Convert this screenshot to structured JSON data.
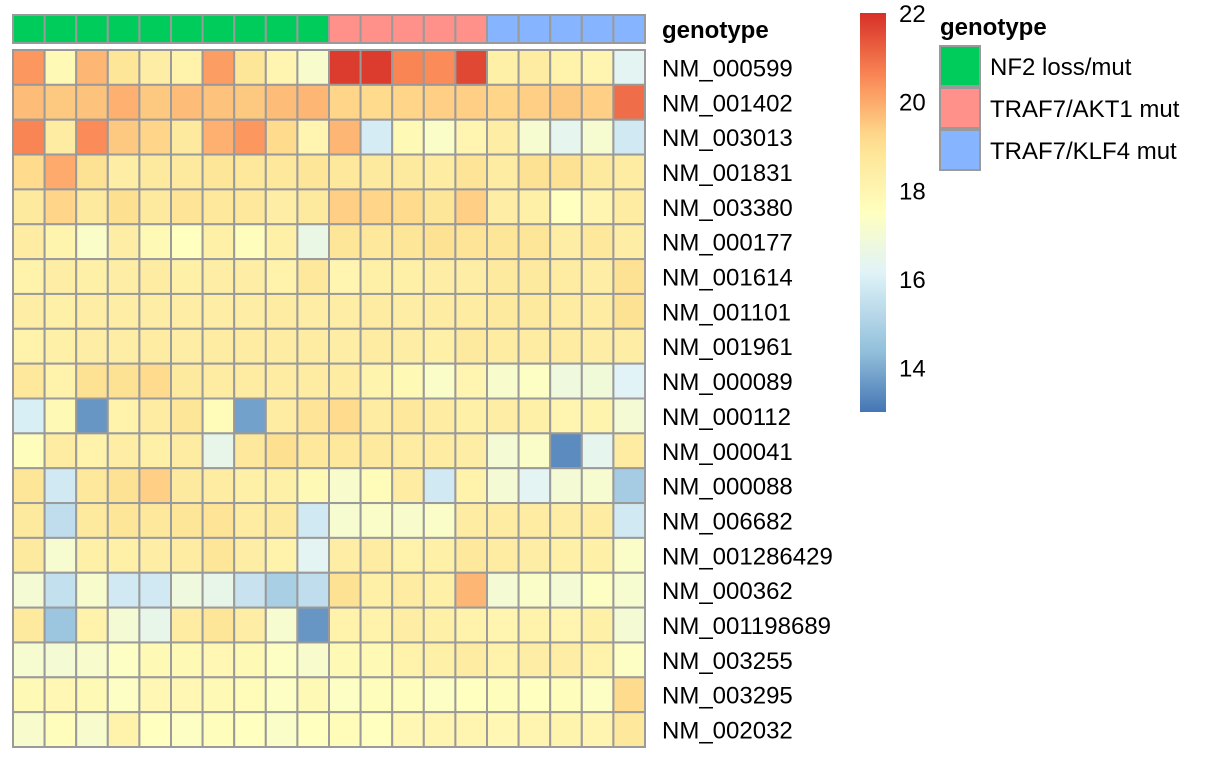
{
  "chart_data": {
    "type": "heatmap",
    "annotation_title": "genotype",
    "legend_title": "genotype",
    "colorbar_ticks": [
      14,
      16,
      18,
      20,
      22
    ],
    "color_range": [
      13,
      22
    ],
    "genotype_groups": [
      {
        "name": "NF2 loss/mut",
        "color": "#00CC5C"
      },
      {
        "name": "TRAF7/AKT1 mut",
        "color": "#FF918A"
      },
      {
        "name": "TRAF7/KLF4 mut",
        "color": "#86B4FF"
      }
    ],
    "column_groups": [
      0,
      0,
      0,
      0,
      0,
      0,
      0,
      0,
      0,
      0,
      1,
      1,
      1,
      1,
      1,
      2,
      2,
      2,
      2,
      2
    ],
    "rows": [
      "NM_000599",
      "NM_001402",
      "NM_003013",
      "NM_001831",
      "NM_003380",
      "NM_000177",
      "NM_001614",
      "NM_001101",
      "NM_001961",
      "NM_000089",
      "NM_000112",
      "NM_000041",
      "NM_000088",
      "NM_006682",
      "NM_001286429",
      "NM_000362",
      "NM_001198689",
      "NM_003255",
      "NM_003295",
      "NM_002032"
    ],
    "values": [
      [
        20.3,
        17.8,
        19.8,
        18.8,
        18.4,
        18.2,
        20.2,
        18.8,
        18.0,
        17.2,
        21.8,
        21.8,
        20.6,
        20.5,
        21.6,
        18.3,
        18.5,
        18.2,
        18.0,
        16.3
      ],
      [
        19.7,
        19.5,
        19.6,
        19.9,
        19.5,
        19.7,
        19.6,
        19.5,
        19.7,
        19.8,
        19.3,
        19.2,
        19.3,
        19.4,
        19.4,
        19.3,
        19.4,
        19.5,
        19.4,
        21.0
      ],
      [
        20.6,
        18.5,
        20.5,
        19.5,
        19.3,
        18.6,
        19.9,
        20.3,
        19.2,
        18.0,
        19.8,
        15.9,
        17.8,
        17.3,
        18.0,
        18.4,
        17.1,
        16.4,
        17.1,
        15.8
      ],
      [
        19.2,
        20.0,
        19.0,
        18.4,
        18.6,
        18.6,
        18.8,
        18.7,
        18.7,
        18.8,
        18.7,
        18.6,
        18.6,
        18.5,
        18.9,
        18.5,
        19.0,
        19.0,
        18.6,
        18.5
      ],
      [
        18.6,
        19.3,
        18.6,
        19.1,
        18.6,
        18.9,
        18.7,
        18.7,
        18.4,
        18.6,
        19.4,
        19.3,
        19.2,
        18.8,
        19.4,
        18.4,
        18.3,
        17.5,
        18.0,
        18.5
      ],
      [
        18.5,
        18.1,
        17.3,
        18.4,
        17.8,
        17.5,
        18.3,
        17.6,
        18.3,
        16.6,
        18.8,
        18.7,
        18.8,
        19.0,
        18.9,
        18.8,
        18.8,
        18.4,
        18.7,
        18.4
      ],
      [
        18.2,
        18.4,
        18.3,
        18.4,
        18.5,
        18.3,
        18.4,
        18.4,
        18.2,
        18.7,
        18.0,
        18.3,
        18.3,
        18.4,
        18.4,
        18.6,
        18.6,
        18.5,
        18.4,
        19.0
      ],
      [
        18.4,
        18.3,
        18.4,
        18.4,
        18.4,
        18.4,
        18.4,
        18.4,
        18.5,
        18.4,
        18.4,
        18.5,
        18.4,
        18.5,
        18.5,
        18.6,
        18.6,
        18.5,
        18.5,
        19.0
      ],
      [
        18.2,
        18.3,
        18.4,
        18.4,
        18.5,
        18.4,
        18.5,
        18.5,
        18.5,
        18.5,
        18.4,
        18.5,
        18.4,
        18.3,
        18.6,
        18.5,
        18.5,
        18.5,
        18.4,
        18.4
      ],
      [
        18.7,
        18.2,
        19.0,
        19.0,
        19.2,
        18.6,
        18.5,
        18.5,
        18.5,
        18.5,
        18.5,
        18.1,
        17.8,
        17.3,
        18.0,
        17.2,
        17.4,
        16.8,
        16.9,
        16.2
      ],
      [
        16.0,
        17.8,
        13.6,
        18.2,
        18.5,
        18.8,
        17.7,
        13.8,
        18.5,
        18.9,
        19.2,
        18.5,
        18.7,
        18.5,
        18.3,
        18.4,
        18.3,
        18.0,
        18.1,
        17.0
      ],
      [
        17.6,
        18.5,
        18.2,
        18.4,
        18.3,
        18.5,
        16.5,
        18.7,
        19.1,
        18.7,
        18.7,
        18.6,
        18.5,
        18.5,
        18.4,
        17.0,
        17.3,
        13.4,
        16.4,
        18.5
      ],
      [
        18.8,
        15.8,
        18.7,
        19.0,
        19.4,
        18.6,
        18.5,
        18.3,
        18.3,
        17.8,
        17.2,
        17.7,
        18.5,
        15.8,
        18.2,
        17.0,
        16.3,
        17.0,
        17.1,
        14.8
      ],
      [
        18.6,
        15.4,
        18.6,
        18.8,
        18.7,
        18.8,
        18.9,
        18.5,
        18.6,
        15.8,
        17.1,
        17.3,
        17.2,
        17.3,
        18.5,
        18.5,
        18.5,
        18.4,
        18.5,
        15.8
      ],
      [
        18.6,
        17.1,
        18.3,
        18.3,
        18.4,
        18.5,
        18.8,
        18.4,
        18.2,
        16.3,
        18.4,
        18.5,
        18.2,
        18.3,
        18.7,
        18.5,
        18.4,
        18.3,
        18.3,
        17.3
      ],
      [
        17.0,
        15.5,
        17.2,
        15.8,
        15.8,
        16.8,
        16.5,
        15.6,
        14.9,
        15.4,
        19.0,
        18.3,
        18.5,
        18.3,
        19.8,
        17.0,
        17.3,
        17.0,
        17.4,
        17.1
      ],
      [
        18.6,
        14.6,
        18.2,
        17.0,
        16.5,
        18.5,
        18.8,
        18.4,
        17.1,
        13.6,
        18.2,
        18.2,
        18.4,
        18.3,
        18.2,
        18.0,
        18.2,
        18.0,
        18.3,
        17.0
      ],
      [
        17.1,
        17.0,
        17.2,
        17.4,
        17.8,
        17.8,
        17.9,
        17.8,
        17.4,
        17.2,
        17.8,
        17.8,
        18.2,
        18.3,
        18.5,
        18.2,
        18.4,
        18.4,
        18.2,
        17.4
      ],
      [
        17.8,
        17.9,
        17.8,
        17.4,
        17.9,
        17.9,
        17.8,
        17.7,
        17.4,
        17.8,
        17.4,
        17.6,
        17.6,
        17.4,
        17.5,
        17.6,
        17.5,
        17.6,
        17.4,
        19.2
      ],
      [
        17.2,
        17.6,
        17.2,
        18.2,
        17.5,
        17.4,
        17.6,
        17.5,
        17.3,
        17.5,
        17.7,
        17.5,
        17.9,
        18.0,
        18.0,
        17.9,
        18.0,
        18.1,
        18.0,
        18.7
      ]
    ]
  }
}
